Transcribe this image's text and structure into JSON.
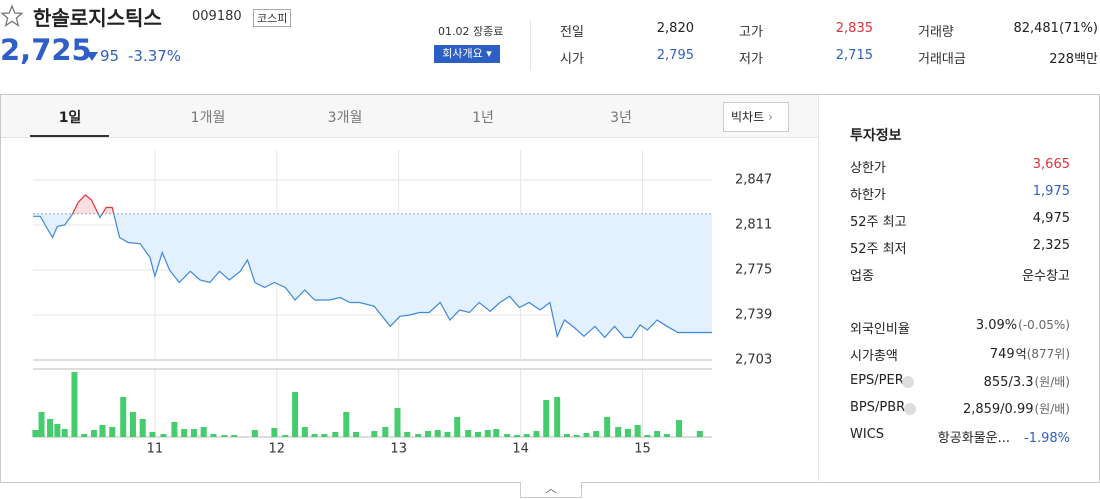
{
  "header": {
    "name": "한솔로지스틱스",
    "code": "009180",
    "market": "코스피",
    "price": "2,725",
    "change": "95",
    "change_rate": "-3.37%",
    "status": "01.02 장종료",
    "company_button": "회사개요"
  },
  "summary": [
    {
      "label": "전일",
      "value": "2,820"
    },
    {
      "label": "고가",
      "value": "2,835"
    },
    {
      "label": "거래량",
      "value": "82,481(71%)"
    },
    {
      "label": "시가",
      "value": "2,795"
    },
    {
      "label": "저가",
      "value": "2,715"
    },
    {
      "label": "거래대금",
      "value": "228백만"
    }
  ],
  "tabs": [
    "1일",
    "1개월",
    "3개월",
    "1년",
    "3년"
  ],
  "big_chart_button": "빅차트",
  "chart_data": [
    {
      "type": "line",
      "grid": true,
      "reference": 2820,
      "x": [
        10.0,
        10.06,
        10.1,
        10.16,
        10.2,
        10.26,
        10.32,
        10.37,
        10.43,
        10.48,
        10.55,
        10.6,
        10.65,
        10.71,
        10.78,
        10.88,
        10.96,
        11.0,
        11.06,
        11.12,
        11.2,
        11.29,
        11.37,
        11.45,
        11.53,
        11.61,
        11.7,
        11.76,
        11.82,
        11.9,
        11.98,
        12.07,
        12.15,
        12.23,
        12.31,
        12.43,
        12.52,
        12.6,
        12.68,
        12.8,
        12.93,
        13.01,
        13.09,
        13.17,
        13.25,
        13.34,
        13.42,
        13.5,
        13.58,
        13.66,
        13.75,
        13.83,
        13.91,
        13.99,
        14.07,
        14.16,
        14.24,
        14.3,
        14.36,
        14.44,
        14.52,
        14.61,
        14.69,
        14.77,
        14.85,
        14.91,
        14.98,
        15.04,
        15.12,
        15.2,
        15.29,
        15.57
      ],
      "series": [
        {
          "color": "#3b88e0",
          "values": [
            2818,
            2818,
            2811,
            2801,
            2810,
            2811,
            2819,
            2829,
            2835,
            2831,
            2817,
            2825,
            2825,
            2801,
            2797,
            2796,
            2785,
            2770,
            2789,
            2775,
            2765,
            2774,
            2767,
            2765,
            2774,
            2767,
            2774,
            2783,
            2765,
            2761,
            2765,
            2761,
            2751,
            2759,
            2751,
            2751,
            2753,
            2749,
            2749,
            2746,
            2730,
            2738,
            2739,
            2741,
            2741,
            2749,
            2735,
            2743,
            2741,
            2749,
            2742,
            2749,
            2754,
            2745,
            2749,
            2743,
            2749,
            2722,
            2735,
            2729,
            2722,
            2730,
            2721,
            2730,
            2721,
            2721,
            2731,
            2727,
            2735,
            2730,
            2725,
            2725
          ]
        }
      ],
      "xlim": [
        10,
        15.57
      ],
      "ylim": [
        2703,
        2871
      ],
      "yticks": [
        {
          "value": 2847,
          "label": "2,847"
        },
        {
          "value": 2811,
          "label": "2,811"
        },
        {
          "value": 2775,
          "label": "2,775"
        },
        {
          "value": 2739,
          "label": "2,739"
        },
        {
          "value": 2703,
          "label": "2,703"
        }
      ]
    },
    {
      "type": "bar",
      "color": "#45cc6c",
      "x": [
        10.02,
        10.07,
        10.14,
        10.2,
        10.26,
        10.34,
        10.42,
        10.5,
        10.57,
        10.65,
        10.74,
        10.82,
        10.9,
        10.98,
        11.07,
        11.16,
        11.24,
        11.32,
        11.4,
        11.48,
        11.57,
        11.65,
        11.82,
        11.98,
        12.07,
        12.15,
        12.23,
        12.31,
        12.39,
        12.48,
        12.57,
        12.65,
        12.8,
        12.89,
        12.99,
        13.07,
        13.16,
        13.24,
        13.32,
        13.4,
        13.48,
        13.57,
        13.65,
        13.73,
        13.8,
        13.89,
        13.97,
        14.05,
        14.13,
        14.21,
        14.3,
        14.38,
        14.46,
        14.54,
        14.62,
        14.71,
        14.8,
        14.88,
        14.96,
        15.04,
        15.12,
        15.2,
        15.3,
        15.47
      ],
      "values": [
        7,
        25,
        18,
        13,
        8,
        65,
        3,
        7,
        12,
        10,
        40,
        25,
        18,
        5,
        3,
        15,
        8,
        8,
        10,
        3,
        2,
        2,
        7,
        9,
        2,
        45,
        10,
        3,
        3,
        5,
        25,
        5,
        6,
        10,
        29,
        5,
        3,
        6,
        7,
        5,
        20,
        7,
        5,
        7,
        8,
        3,
        2,
        3,
        6,
        37,
        40,
        3,
        2,
        4,
        6,
        20,
        10,
        8,
        12,
        2,
        6,
        3,
        17,
        6
      ],
      "xlim": [
        10,
        15.57
      ],
      "ylim": [
        0,
        66
      ],
      "xticks": [
        11,
        12,
        13,
        14,
        15
      ]
    }
  ],
  "invest_info": {
    "title": "투자정보",
    "rows": [
      {
        "label": "상한가",
        "value": "3,665"
      },
      {
        "label": "하한가",
        "value": "1,975"
      },
      {
        "label": "52주 최고",
        "value": "4,975"
      },
      {
        "label": "52주 최저",
        "value": "2,325"
      },
      {
        "label": "업종",
        "value": "운수창고"
      }
    ],
    "rows2": [
      {
        "label": "외국인비율",
        "value": "3.09%",
        "note": "(-0.05%)"
      },
      {
        "label": "시가총액",
        "value": "749",
        "unit": "억",
        "note": "(877위)"
      },
      {
        "label": "EPS/PER",
        "value": "855/3.3",
        "note": "(원/배)"
      },
      {
        "label": "BPS/PBR",
        "value": "2,859/0.99",
        "note": "(원/배)"
      },
      {
        "label": "WICS",
        "value": "항공화물운...",
        "note": "-1.98%"
      }
    ]
  }
}
